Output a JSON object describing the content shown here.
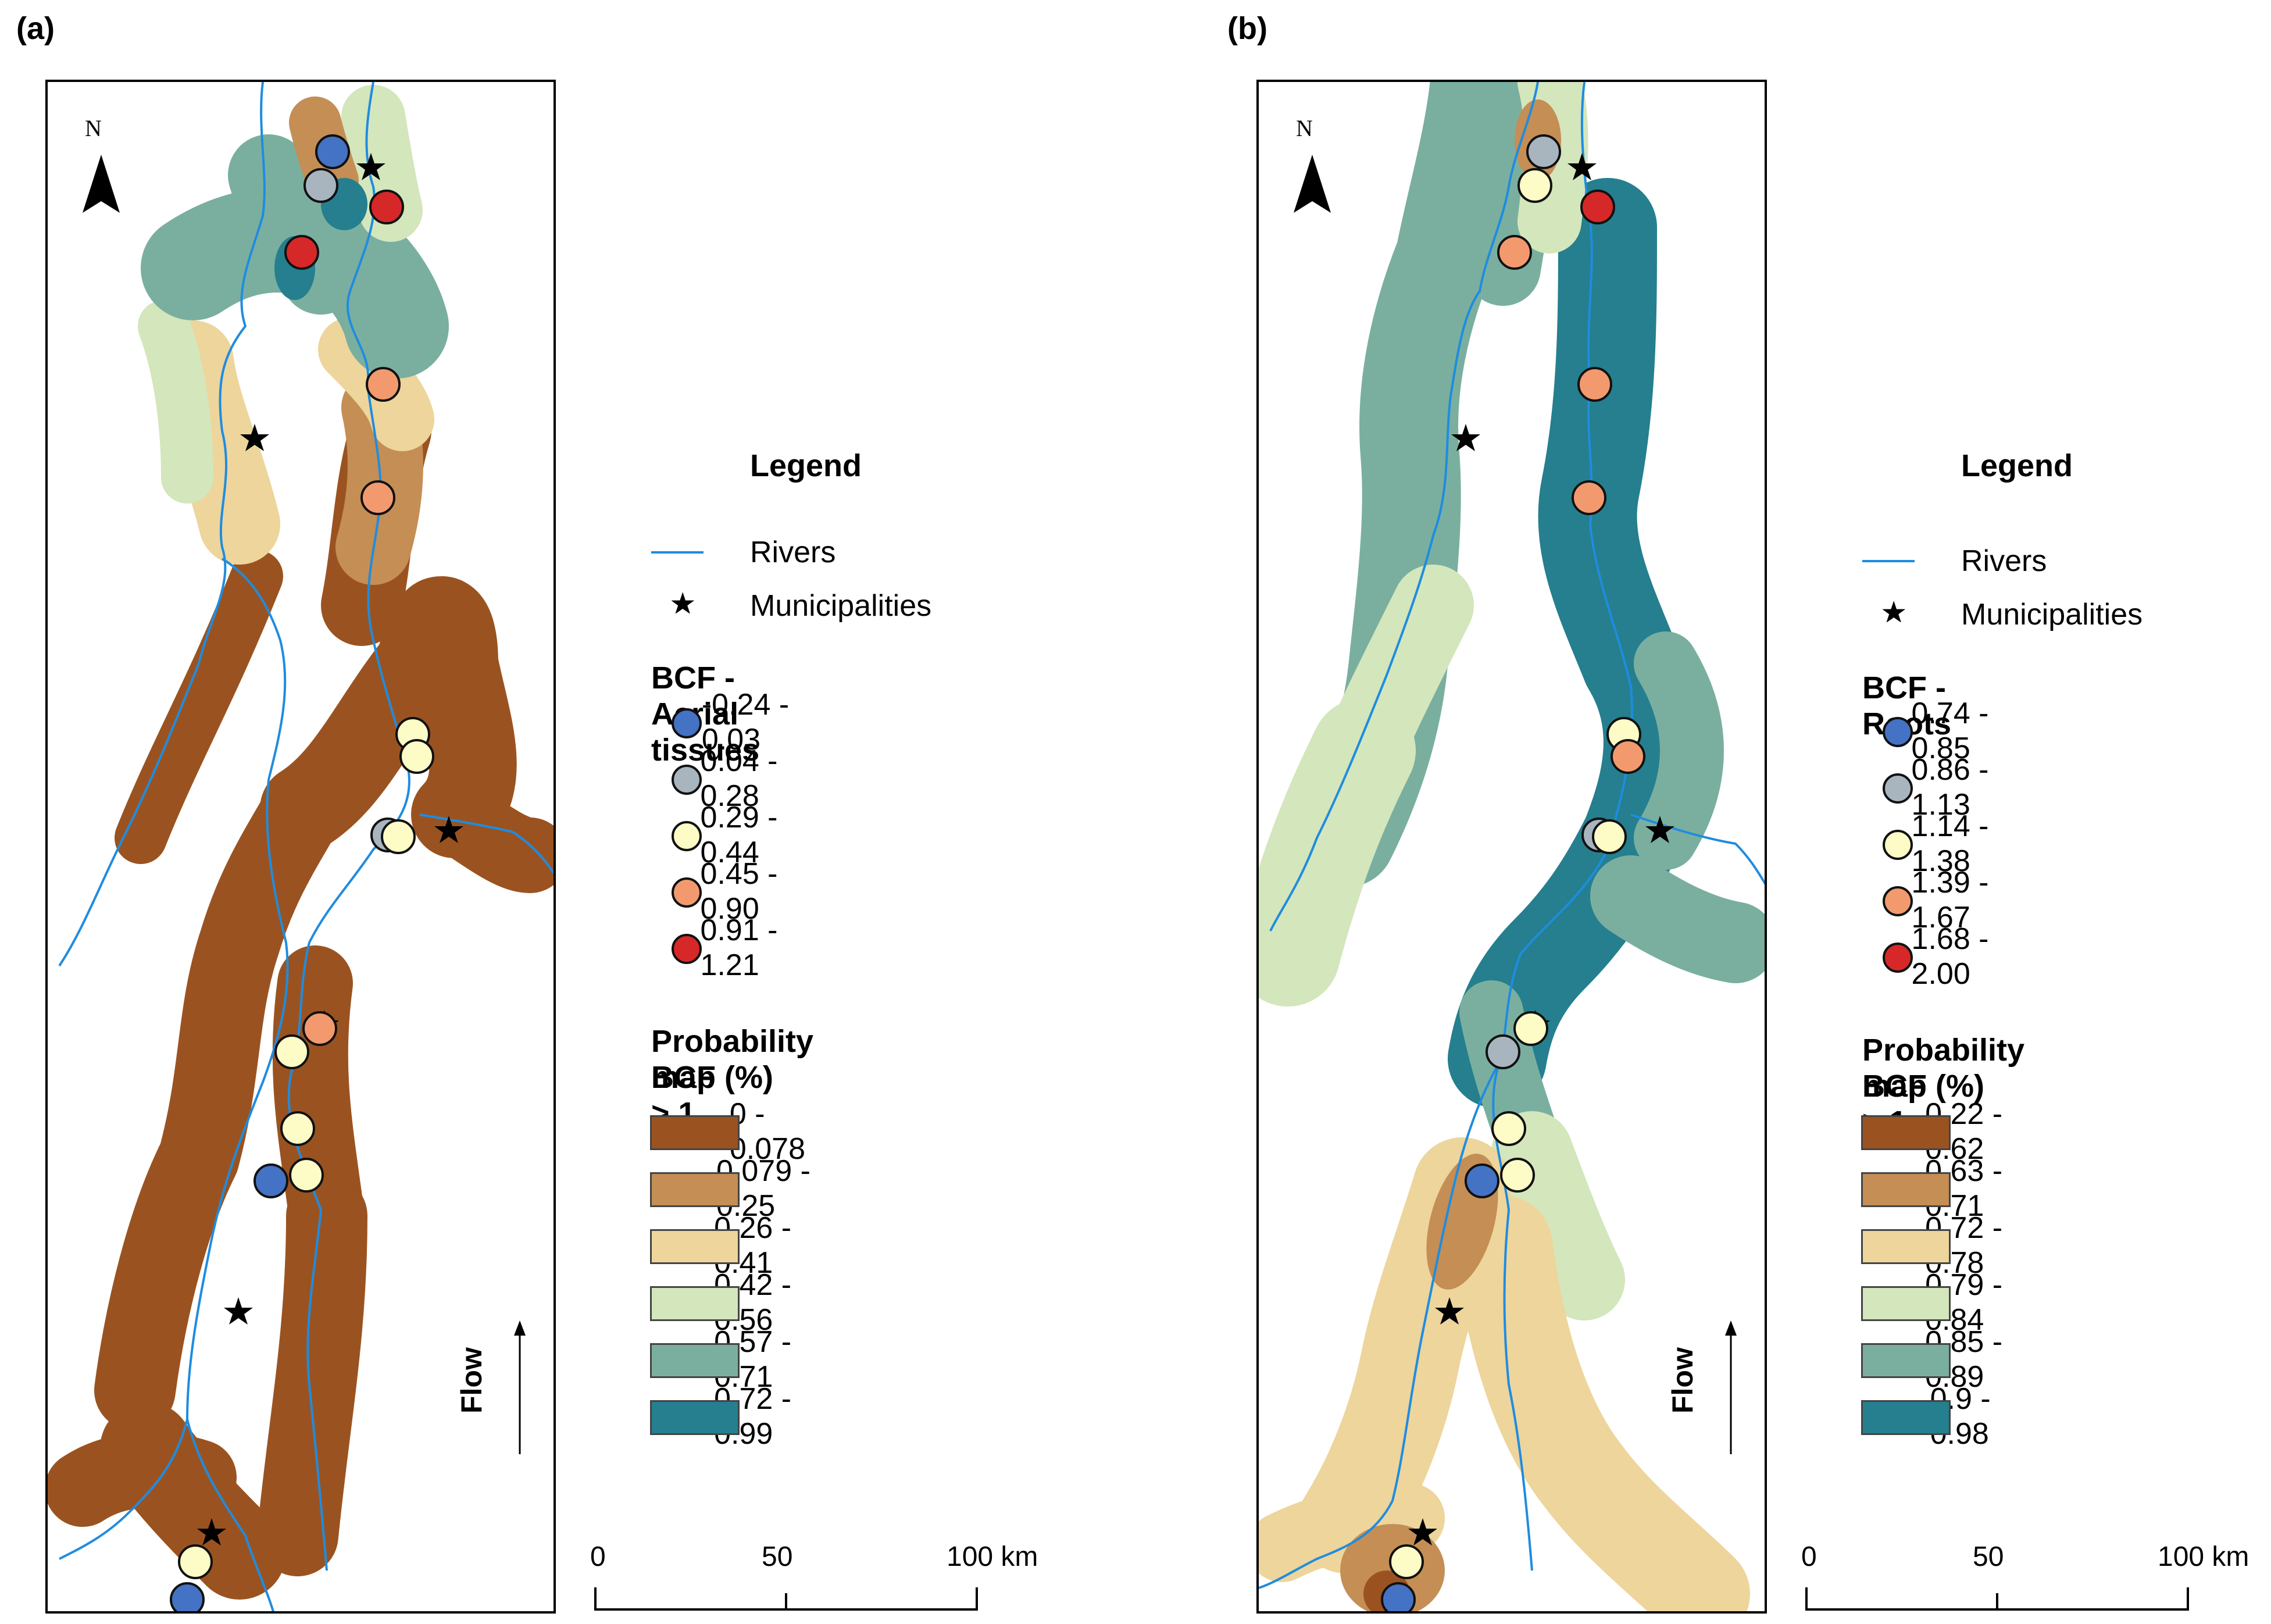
{
  "panels": [
    {
      "label": "(a)",
      "north": "N",
      "flow": "Flow",
      "legend": {
        "title": "Legend",
        "rivers": "Rivers",
        "municipalities": "Municipalities",
        "bcf_title": "BCF - Aerial tissues",
        "bcf_classes": [
          {
            "label": "-0.24 - 0.03",
            "color": "#4472c4"
          },
          {
            "label": "0.04 - 0.28",
            "color": "#a8b5bf"
          },
          {
            "label": "0.29 - 0.44",
            "color": "#fdfbc6"
          },
          {
            "label": "0.45 - 0.90",
            "color": "#f29a6e"
          },
          {
            "label": "0.91 - 1.21",
            "color": "#d62828"
          }
        ],
        "prob_title_1": "Probability map (%)",
        "prob_title_2": "BCF > 1",
        "prob_classes": [
          {
            "label": "0 - 0.078",
            "color": "#9a5320"
          },
          {
            "label": "0.079 - 0.25",
            "color": "#c48e55"
          },
          {
            "label": "0.26 - 0.41",
            "color": "#edd59c"
          },
          {
            "label": "0.42 - 0.56",
            "color": "#d4e6bc"
          },
          {
            "label": "0.57 - 0.71",
            "color": "#7aaf9f"
          },
          {
            "label": "0.72 - 0.99",
            "color": "#257f8e"
          }
        ]
      },
      "scale": {
        "ticks": [
          "0",
          "50",
          "100 km"
        ]
      }
    },
    {
      "label": "(b)",
      "north": "N",
      "flow": "Flow",
      "legend": {
        "title": "Legend",
        "rivers": "Rivers",
        "municipalities": "Municipalities",
        "bcf_title": "BCF - Roots",
        "bcf_classes": [
          {
            "label": "0.74 - 0.85",
            "color": "#4472c4"
          },
          {
            "label": "0.86 - 1.13",
            "color": "#a8b5bf"
          },
          {
            "label": "1.14 - 1.38",
            "color": "#fdfbc6"
          },
          {
            "label": "1.39 - 1.67",
            "color": "#f29a6e"
          },
          {
            "label": "1.68 - 2.00",
            "color": "#d62828"
          }
        ],
        "prob_title_1": "Probability map (%)",
        "prob_title_2": "BCF > 1",
        "prob_classes": [
          {
            "label": "0.22 - 0.62",
            "color": "#9a5320"
          },
          {
            "label": "0.63 - 0.71",
            "color": "#c48e55"
          },
          {
            "label": "0.72 - 0.78",
            "color": "#edd59c"
          },
          {
            "label": "0.79 - 0.84",
            "color": "#d4e6bc"
          },
          {
            "label": "0.85 - 0.89",
            "color": "#7aaf9f"
          },
          {
            "label": "0.9 - 0.98",
            "color": "#257f8e"
          }
        ]
      },
      "scale": {
        "ticks": [
          "0",
          "50",
          "100 km"
        ]
      }
    }
  ],
  "colors": {
    "river": "#1f8ce0",
    "star": "#000000"
  }
}
